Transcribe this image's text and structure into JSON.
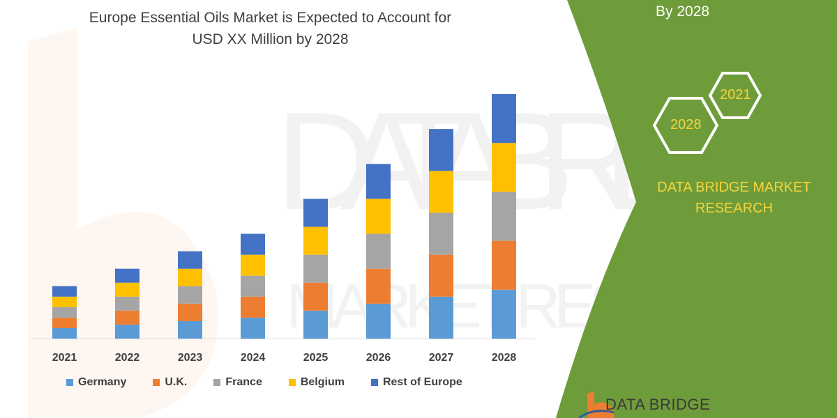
{
  "chart_data": {
    "type": "bar",
    "stacked": true,
    "title": "Europe Essential Oils Market is Expected to Account for USD XX Million by 2028",
    "title_lines": [
      "Europe Essential Oils Market is Expected to Account for",
      "USD XX Million by 2028"
    ],
    "xlabel": "",
    "ylabel": "",
    "ylim": [
      0,
      70
    ],
    "grid": false,
    "y_axis_shown": false,
    "legend_position": "bottom",
    "categories": [
      "2021",
      "2022",
      "2023",
      "2024",
      "2025",
      "2026",
      "2027",
      "2028"
    ],
    "series": [
      {
        "name": "Germany",
        "color": "#5b9bd5",
        "values": [
          3,
          4,
          5,
          6,
          8,
          10,
          12,
          14
        ]
      },
      {
        "name": "U.K.",
        "color": "#ed7d31",
        "values": [
          3,
          4,
          5,
          6,
          8,
          10,
          12,
          14
        ]
      },
      {
        "name": "France",
        "color": "#a5a5a5",
        "values": [
          3,
          4,
          5,
          6,
          8,
          10,
          12,
          14
        ]
      },
      {
        "name": "Belgium",
        "color": "#ffc000",
        "values": [
          3,
          4,
          5,
          6,
          8,
          10,
          12,
          14
        ]
      },
      {
        "name": "Rest of Europe",
        "color": "#4472c4",
        "values": [
          3,
          4,
          5,
          6,
          8,
          10,
          12,
          14
        ]
      }
    ]
  },
  "side_panel": {
    "headline_tail": "By 2028",
    "hex_years": [
      "2021",
      "2028"
    ],
    "brand_lines": [
      "DATA BRIDGE MARKET",
      "RESEARCH"
    ],
    "logo_text": "DATA BRIDGE",
    "panel_color": "#6f9c3a",
    "accent_color": "#f5d33a"
  }
}
